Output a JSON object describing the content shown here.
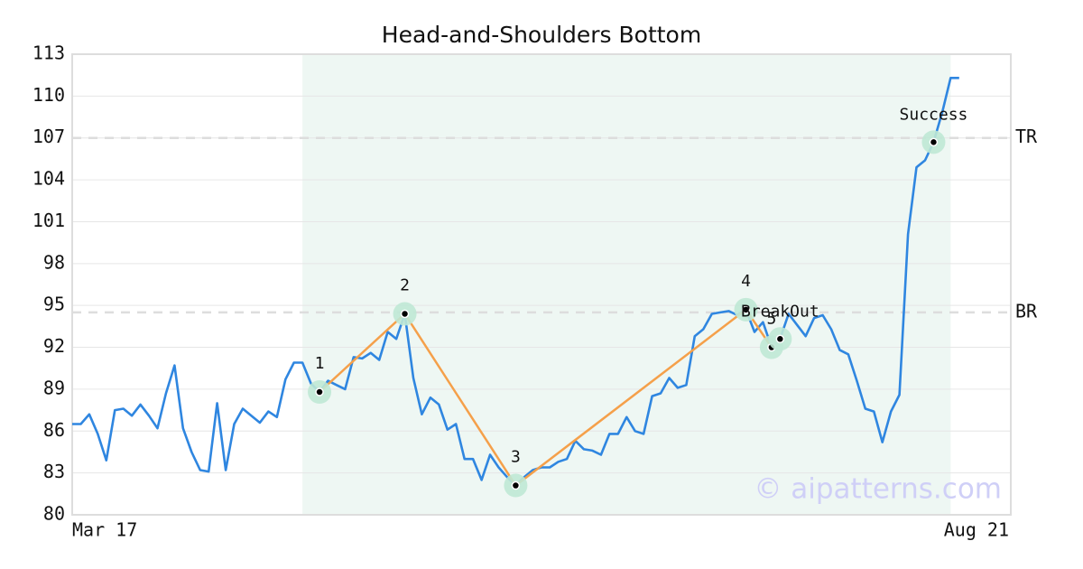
{
  "chart_data": {
    "type": "line",
    "title": "Head-and-Shoulders Bottom",
    "categories": [
      "Mar 17",
      null,
      null,
      null,
      null,
      null,
      null,
      null,
      null,
      null,
      null,
      null,
      null,
      null,
      null,
      null,
      null,
      null,
      null,
      null,
      null,
      null,
      null,
      null,
      null,
      null,
      null,
      null,
      null,
      null,
      null,
      null,
      null,
      null,
      null,
      null,
      null,
      null,
      null,
      null,
      null,
      null,
      null,
      null,
      null,
      null,
      null,
      null,
      null,
      null,
      null,
      null,
      null,
      null,
      null,
      null,
      null,
      null,
      null,
      null,
      null,
      null,
      null,
      null,
      null,
      null,
      null,
      null,
      null,
      null,
      null,
      null,
      null,
      null,
      null,
      null,
      null,
      null,
      null,
      null,
      null,
      null,
      null,
      null,
      null,
      null,
      null,
      null,
      null,
      null,
      null,
      null,
      null,
      null,
      null,
      null,
      null,
      null,
      null,
      null,
      null,
      null,
      null,
      null,
      "Aug 21"
    ],
    "values": [
      86.5,
      86.5,
      87.2,
      85.8,
      83.9,
      87.5,
      87.6,
      87.1,
      87.9,
      87.1,
      86.2,
      88.7,
      90.7,
      86.2,
      84.5,
      83.2,
      83.1,
      88.0,
      83.2,
      86.5,
      87.6,
      87.1,
      86.6,
      87.4,
      87.0,
      89.7,
      90.9,
      90.9,
      89.4,
      88.8,
      89.6,
      89.3,
      89.0,
      91.3,
      91.2,
      91.6,
      91.1,
      93.1,
      92.6,
      94.4,
      89.8,
      87.2,
      88.4,
      87.9,
      86.1,
      86.5,
      84.0,
      84.0,
      82.5,
      84.3,
      83.4,
      82.7,
      82.1,
      82.7,
      83.2,
      83.4,
      83.4,
      83.8,
      84.0,
      85.3,
      84.7,
      84.6,
      84.3,
      85.8,
      85.8,
      87.0,
      86.0,
      85.8,
      88.5,
      88.7,
      89.8,
      89.1,
      89.3,
      92.8,
      93.3,
      94.4,
      94.5,
      94.6,
      94.3,
      94.7,
      93.1,
      93.8,
      92.0,
      92.6,
      94.4,
      93.6,
      92.8,
      94.1,
      94.3,
      93.3,
      91.8,
      91.5,
      89.6,
      87.6,
      87.4,
      85.2,
      87.4,
      88.6,
      100.1,
      104.9,
      105.4,
      106.7,
      108.8,
      111.3,
      111.3
    ],
    "color": "#2f86e0",
    "ylim": [
      80,
      113
    ],
    "yticks": [
      80,
      83,
      86,
      89,
      92,
      95,
      98,
      101,
      104,
      107,
      110,
      113
    ],
    "grid": true,
    "highlight_range": [
      27,
      103
    ],
    "pattern_color": "#f5a04a",
    "pattern": [
      {
        "label": "1",
        "index": 29,
        "value": 88.8
      },
      {
        "label": "2",
        "index": 39,
        "value": 94.4
      },
      {
        "label": "3",
        "index": 52,
        "value": 82.1
      },
      {
        "label": "4",
        "index": 79,
        "value": 94.7
      },
      {
        "label": "5",
        "index": 82,
        "value": 92.0
      }
    ],
    "signals": [
      {
        "label": "BreakOut",
        "index": 83,
        "value": 92.6
      },
      {
        "label": "Success",
        "index": 101,
        "value": 106.7
      }
    ],
    "levels": [
      {
        "label": "TR",
        "value": 107.0
      },
      {
        "label": "BR",
        "value": 94.5
      }
    ],
    "watermark": "© aipatterns.com"
  }
}
